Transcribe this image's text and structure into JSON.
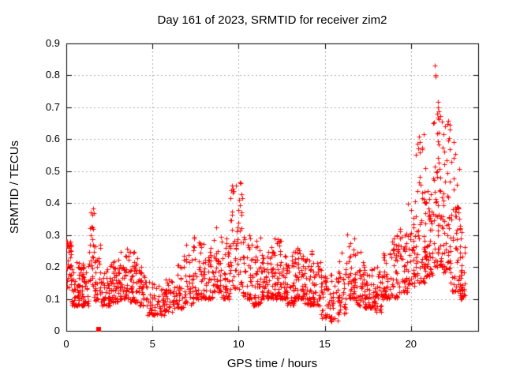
{
  "title": "Day 161 of 2023, SRMTID for receiver zim2",
  "chart_data": {
    "type": "scatter",
    "title": "Day 161 of 2023, SRMTID for receiver zim2",
    "xlabel": "GPS time / hours",
    "ylabel": "SRMTID / TECUs",
    "xlim": [
      0,
      23.9
    ],
    "ylim": [
      0,
      0.9
    ],
    "xticks": [
      0,
      5,
      10,
      15,
      20
    ],
    "yticks": [
      0,
      0.1,
      0.2,
      0.3,
      0.4,
      0.5,
      0.6,
      0.7,
      0.8,
      0.9
    ],
    "xtick_labels": [
      "0",
      "5",
      "10",
      "15",
      "20"
    ],
    "ytick_labels": [
      "0",
      "0.1",
      "0.2",
      "0.3",
      "0.4",
      "0.5",
      "0.6",
      "0.7",
      "0.8",
      "0.9"
    ],
    "grid": "dotted",
    "legend": "none",
    "marker": "plus",
    "marker_size": 7,
    "marker_color": "#ff0000",
    "grid_color": "#b0b0b0",
    "axis_color": "#000000",
    "background_color": "#ffffff",
    "series_name": "SRMTID",
    "density_bins_format": [
      "x_start_hours",
      "x_end_hours",
      "y_min_TECUs",
      "y_max_TECUs",
      "point_count",
      "mode_0low_1high_2uniform"
    ],
    "density_bins": [
      [
        0.0,
        0.3,
        0.13,
        0.28,
        35,
        1
      ],
      [
        0.3,
        0.8,
        0.08,
        0.22,
        52,
        0
      ],
      [
        0.8,
        1.3,
        0.08,
        0.21,
        50,
        0
      ],
      [
        1.3,
        1.6,
        0.14,
        0.4,
        28,
        2
      ],
      [
        1.6,
        2.0,
        0.09,
        0.28,
        32,
        0
      ],
      [
        2.0,
        2.5,
        0.08,
        0.2,
        45,
        0
      ],
      [
        2.5,
        3.0,
        0.09,
        0.22,
        45,
        0
      ],
      [
        3.0,
        3.6,
        0.1,
        0.26,
        52,
        0
      ],
      [
        3.6,
        4.2,
        0.09,
        0.25,
        50,
        0
      ],
      [
        4.2,
        4.7,
        0.08,
        0.2,
        40,
        0
      ],
      [
        4.7,
        5.2,
        0.05,
        0.16,
        30,
        0
      ],
      [
        5.2,
        5.7,
        0.05,
        0.15,
        28,
        0
      ],
      [
        5.7,
        6.2,
        0.06,
        0.18,
        35,
        0
      ],
      [
        6.2,
        6.8,
        0.07,
        0.22,
        42,
        0
      ],
      [
        6.8,
        7.4,
        0.08,
        0.27,
        44,
        0
      ],
      [
        7.4,
        8.0,
        0.1,
        0.3,
        42,
        0
      ],
      [
        8.0,
        8.5,
        0.1,
        0.26,
        40,
        0
      ],
      [
        8.5,
        9.0,
        0.12,
        0.34,
        40,
        0
      ],
      [
        9.0,
        9.5,
        0.1,
        0.3,
        38,
        0
      ],
      [
        9.5,
        10.2,
        0.13,
        0.47,
        58,
        2
      ],
      [
        10.2,
        10.8,
        0.1,
        0.3,
        42,
        0
      ],
      [
        10.8,
        11.3,
        0.08,
        0.3,
        46,
        0
      ],
      [
        11.3,
        11.8,
        0.1,
        0.25,
        46,
        0
      ],
      [
        11.8,
        12.3,
        0.1,
        0.31,
        46,
        0
      ],
      [
        12.3,
        12.8,
        0.1,
        0.31,
        46,
        0
      ],
      [
        12.8,
        13.3,
        0.08,
        0.25,
        46,
        0
      ],
      [
        13.3,
        13.8,
        0.1,
        0.26,
        46,
        0
      ],
      [
        13.8,
        14.3,
        0.08,
        0.27,
        46,
        0
      ],
      [
        14.3,
        14.8,
        0.08,
        0.22,
        40,
        0
      ],
      [
        14.8,
        15.3,
        0.04,
        0.2,
        35,
        0
      ],
      [
        15.3,
        15.8,
        0.03,
        0.18,
        30,
        0
      ],
      [
        15.8,
        16.3,
        0.05,
        0.25,
        36,
        0
      ],
      [
        16.3,
        16.8,
        0.1,
        0.32,
        40,
        0
      ],
      [
        16.8,
        17.3,
        0.08,
        0.25,
        40,
        0
      ],
      [
        17.3,
        17.8,
        0.07,
        0.2,
        40,
        0
      ],
      [
        17.8,
        18.3,
        0.06,
        0.2,
        40,
        0
      ],
      [
        18.3,
        18.8,
        0.1,
        0.25,
        40,
        0
      ],
      [
        18.8,
        19.3,
        0.1,
        0.3,
        42,
        0
      ],
      [
        19.3,
        19.8,
        0.12,
        0.33,
        42,
        0
      ],
      [
        19.8,
        20.3,
        0.14,
        0.42,
        46,
        0
      ],
      [
        20.3,
        20.8,
        0.15,
        0.62,
        50,
        0
      ],
      [
        20.8,
        21.3,
        0.17,
        0.56,
        55,
        0
      ],
      [
        21.3,
        21.8,
        0.2,
        0.72,
        60,
        0
      ],
      [
        21.8,
        22.3,
        0.18,
        0.66,
        55,
        0
      ],
      [
        22.3,
        22.8,
        0.12,
        0.62,
        48,
        0
      ],
      [
        22.8,
        23.15,
        0.1,
        0.35,
        40,
        0
      ]
    ],
    "outlier_points": [
      [
        21.38,
        0.83
      ],
      [
        21.41,
        0.802
      ],
      [
        21.44,
        0.797
      ],
      [
        21.57,
        0.7
      ],
      [
        21.62,
        0.688
      ],
      [
        21.68,
        0.672
      ],
      [
        21.55,
        0.667
      ]
    ],
    "square_marker_point": [
      1.9,
      0.005
    ]
  }
}
